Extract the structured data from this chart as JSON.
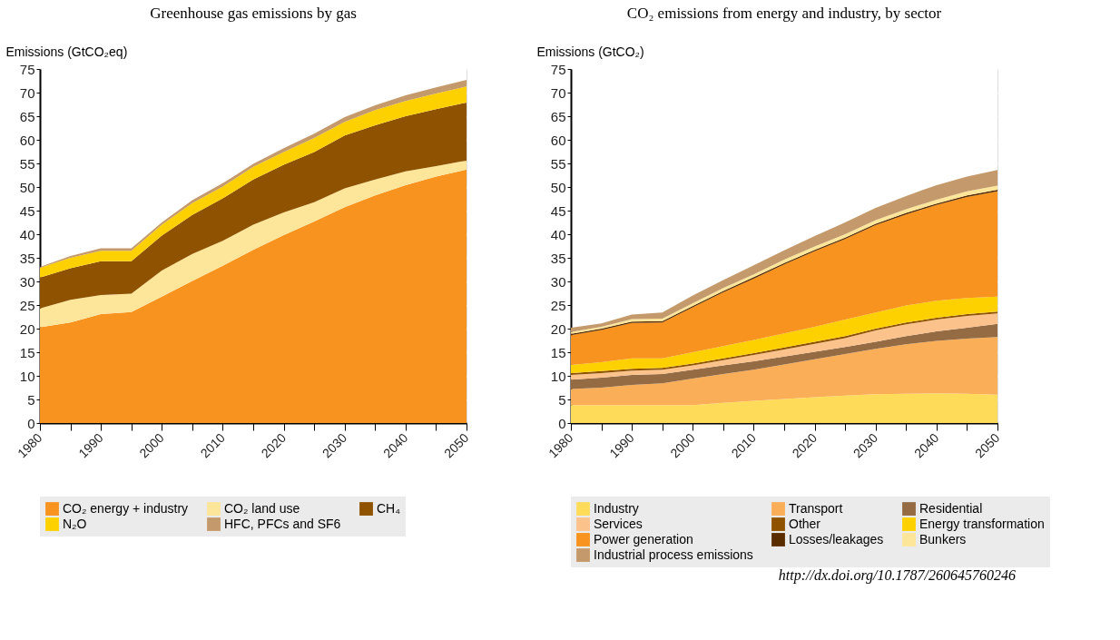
{
  "chart_data": [
    {
      "type": "area",
      "title": "Greenhouse gas emissions by gas",
      "ylabel": "Emissions (GtCO₂eq)",
      "stacked": true,
      "grid": "y",
      "legend": "bottom",
      "x": [
        1980,
        1985,
        1990,
        1995,
        2000,
        2005,
        2010,
        2015,
        2020,
        2025,
        2030,
        2035,
        2040,
        2045,
        2050
      ],
      "xlim": [
        1980,
        2050
      ],
      "xticks": [
        1980,
        {
          "value": 1985,
          "label": null
        },
        1990,
        {
          "value": 1995,
          "label": null
        },
        2000,
        {
          "value": 2005,
          "label": null
        },
        2010,
        {
          "value": 2015,
          "label": null
        },
        2020,
        {
          "value": 2025,
          "label": null
        },
        2030,
        {
          "value": 2035,
          "label": null
        },
        2040,
        {
          "value": 2045,
          "label": null
        },
        2050
      ],
      "ylim": [
        0,
        75
      ],
      "yticks": [
        0,
        5,
        10,
        15,
        20,
        25,
        30,
        35,
        40,
        45,
        50,
        55,
        60,
        65,
        70,
        75
      ],
      "series": [
        {
          "name": "CO₂ energy + industry",
          "color": "#f7931e",
          "values": [
            20.3,
            21.3,
            23.1,
            23.5,
            26.8,
            30.1,
            33.3,
            36.7,
            39.8,
            42.7,
            45.7,
            48.2,
            50.4,
            52.2,
            53.7
          ]
        },
        {
          "name": "CO₂ land use",
          "color": "#fde59a",
          "values": [
            4.0,
            4.8,
            4.0,
            3.9,
            5.5,
            5.7,
            5.3,
            5.3,
            4.8,
            4.1,
            4.0,
            3.4,
            2.9,
            2.2,
            1.9
          ]
        },
        {
          "name": "CH₄",
          "color": "#8f5300",
          "values": [
            6.5,
            6.7,
            7.2,
            6.9,
            7.4,
            8.3,
            9.0,
            9.6,
            10.1,
            10.6,
            11.2,
            11.5,
            11.7,
            12.1,
            12.3
          ]
        },
        {
          "name": "N₂O",
          "color": "#fdd000",
          "values": [
            2.1,
            2.2,
            2.2,
            2.2,
            2.3,
            2.5,
            2.5,
            2.7,
            2.7,
            3.0,
            2.9,
            3.2,
            3.2,
            3.3,
            3.4
          ]
        },
        {
          "name": "HFC, PFCs and SF6",
          "color": "#c49a6c",
          "values": [
            0.2,
            0.4,
            0.5,
            0.5,
            0.5,
            0.6,
            0.7,
            0.6,
            0.8,
            0.9,
            1.0,
            1.0,
            1.2,
            1.3,
            1.4
          ]
        }
      ]
    },
    {
      "type": "area",
      "title": "CO₂ emissions from energy and industry, by sector",
      "ylabel": "Emissions (GtCO₂)",
      "stacked": true,
      "grid": "y",
      "legend": "bottom",
      "x": [
        1980,
        1985,
        1990,
        1995,
        2000,
        2005,
        2010,
        2015,
        2020,
        2025,
        2030,
        2035,
        2040,
        2045,
        2050
      ],
      "xlim": [
        1980,
        2050
      ],
      "xticks": [
        1980,
        {
          "value": 1985,
          "label": null
        },
        1990,
        {
          "value": 1995,
          "label": null
        },
        2000,
        {
          "value": 2005,
          "label": null
        },
        2010,
        {
          "value": 2015,
          "label": null
        },
        2020,
        {
          "value": 2025,
          "label": null
        },
        2030,
        {
          "value": 2035,
          "label": null
        },
        2040,
        {
          "value": 2045,
          "label": null
        },
        2050
      ],
      "ylim": [
        0,
        75
      ],
      "yticks": [
        0,
        5,
        10,
        15,
        20,
        25,
        30,
        35,
        40,
        45,
        50,
        55,
        60,
        65,
        70,
        75
      ],
      "series": [
        {
          "name": "Industry",
          "color": "#fedc5a",
          "values": [
            3.8,
            3.8,
            3.8,
            3.8,
            3.8,
            4.3,
            4.7,
            5.1,
            5.5,
            5.8,
            6.1,
            6.2,
            6.3,
            6.2,
            6.0
          ]
        },
        {
          "name": "Transport",
          "color": "#f9ae57",
          "values": [
            3.4,
            3.7,
            4.3,
            4.6,
            5.6,
            6.1,
            6.6,
            7.3,
            8.0,
            8.8,
            9.6,
            10.5,
            11.1,
            11.7,
            12.2
          ]
        },
        {
          "name": "Residential",
          "color": "#946b43",
          "values": [
            2.0,
            2.1,
            2.1,
            2.0,
            1.9,
            1.8,
            1.8,
            1.7,
            1.6,
            1.5,
            1.5,
            1.7,
            2.0,
            2.3,
            2.8
          ]
        },
        {
          "name": "Services",
          "color": "#fcc28c",
          "values": [
            1.0,
            1.0,
            0.9,
            0.9,
            0.9,
            1.1,
            1.3,
            1.5,
            1.7,
            1.9,
            2.4,
            2.5,
            2.5,
            2.5,
            2.2
          ]
        },
        {
          "name": "Other",
          "color": "#8f5300",
          "values": [
            0.4,
            0.4,
            0.4,
            0.4,
            0.4,
            0.4,
            0.4,
            0.4,
            0.4,
            0.4,
            0.4,
            0.4,
            0.4,
            0.4,
            0.4
          ]
        },
        {
          "name": "Energy transformation",
          "color": "#fdd000",
          "values": [
            1.7,
            1.9,
            2.2,
            2.0,
            2.4,
            2.6,
            2.8,
            3.0,
            3.2,
            3.5,
            3.4,
            3.6,
            3.6,
            3.4,
            3.2
          ]
        },
        {
          "name": "Power generation",
          "color": "#f7931e",
          "values": [
            6.3,
            6.8,
            7.5,
            7.6,
            9.5,
            11.4,
            13.0,
            14.6,
            16.0,
            17.1,
            18.5,
            19.3,
            20.3,
            21.4,
            22.3
          ]
        },
        {
          "name": "Losses/leakages",
          "color": "#5a2d00",
          "values": [
            0.3,
            0.3,
            0.3,
            0.3,
            0.3,
            0.3,
            0.3,
            0.3,
            0.3,
            0.3,
            0.3,
            0.3,
            0.3,
            0.3,
            0.3
          ]
        },
        {
          "name": "Bunkers",
          "color": "#fde59a",
          "values": [
            0.4,
            0.4,
            0.5,
            0.5,
            0.6,
            0.6,
            0.6,
            0.7,
            0.7,
            0.7,
            0.8,
            0.8,
            0.8,
            0.9,
            0.9
          ]
        },
        {
          "name": "Industrial process emissions",
          "color": "#c49a6c",
          "values": [
            0.9,
            0.7,
            1.0,
            1.3,
            1.6,
            1.7,
            1.9,
            2.0,
            2.2,
            2.5,
            2.6,
            2.8,
            3.1,
            3.1,
            3.3
          ]
        }
      ],
      "annotations": [
        "http://dx.doi.org/10.1787/260645760246"
      ]
    }
  ]
}
